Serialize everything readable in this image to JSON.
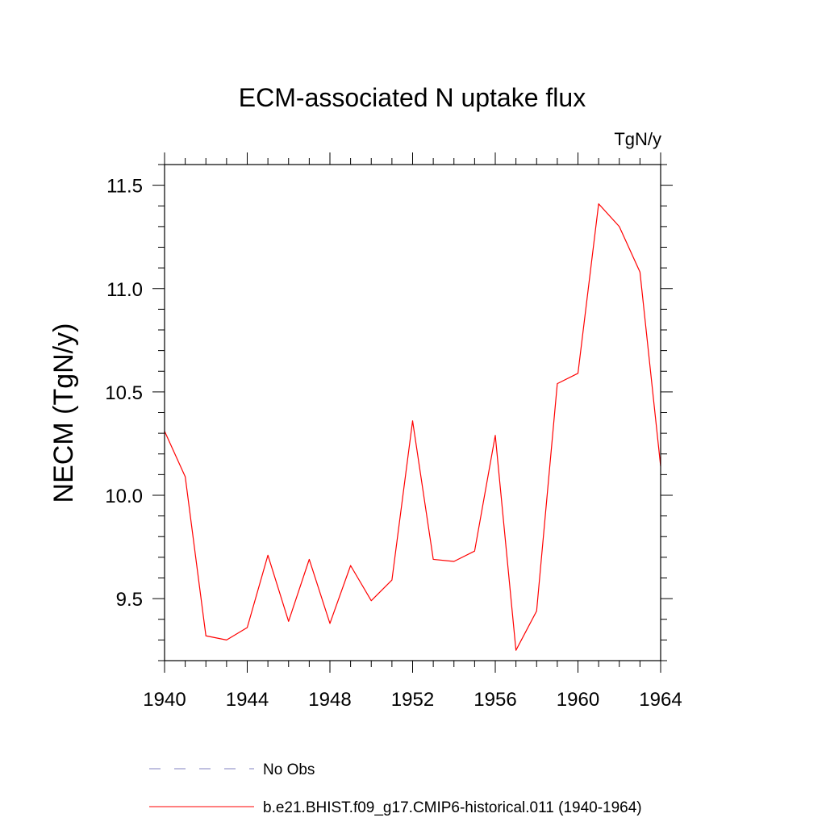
{
  "chart_data": {
    "type": "line",
    "title": "ECM-associated N uptake flux",
    "units_label": "TgN/y",
    "xlabel": "",
    "ylabel": "NECM  (TgN/y)",
    "xlim": [
      1940,
      1964
    ],
    "ylim": [
      9.2,
      11.6
    ],
    "xticks": [
      1940,
      1944,
      1948,
      1952,
      1956,
      1960,
      1964
    ],
    "xtick_labels": [
      "1940",
      "1944",
      "1948",
      "1952",
      "1956",
      "1960",
      "1964"
    ],
    "yticks": [
      9.5,
      10.0,
      10.5,
      11.0,
      11.5
    ],
    "ytick_labels": [
      "9.5",
      "10.0",
      "10.5",
      "11.0",
      "11.5"
    ],
    "grid": false,
    "legend_position": "bottom",
    "series": [
      {
        "name": "b.e21.BHIST.f09_g17.CMIP6-historical.011 (1940-1964)",
        "color": "#ff0000",
        "style": "solid",
        "x": [
          1940,
          1941,
          1942,
          1943,
          1944,
          1945,
          1946,
          1947,
          1948,
          1949,
          1950,
          1951,
          1952,
          1953,
          1954,
          1955,
          1956,
          1957,
          1958,
          1959,
          1960,
          1961,
          1962,
          1963,
          1964
        ],
        "y": [
          10.31,
          10.09,
          9.32,
          9.3,
          9.36,
          9.71,
          9.39,
          9.69,
          9.38,
          9.66,
          9.49,
          9.59,
          10.36,
          9.69,
          9.68,
          9.73,
          10.29,
          9.25,
          9.44,
          10.54,
          10.59,
          11.41,
          11.3,
          11.08,
          10.14
        ]
      }
    ],
    "legend": [
      {
        "label": "No Obs",
        "color": "#8080c0",
        "style": "dashed"
      },
      {
        "label": "b.e21.BHIST.f09_g17.CMIP6-historical.011 (1940-1964)",
        "color": "#ff0000",
        "style": "solid"
      }
    ]
  }
}
